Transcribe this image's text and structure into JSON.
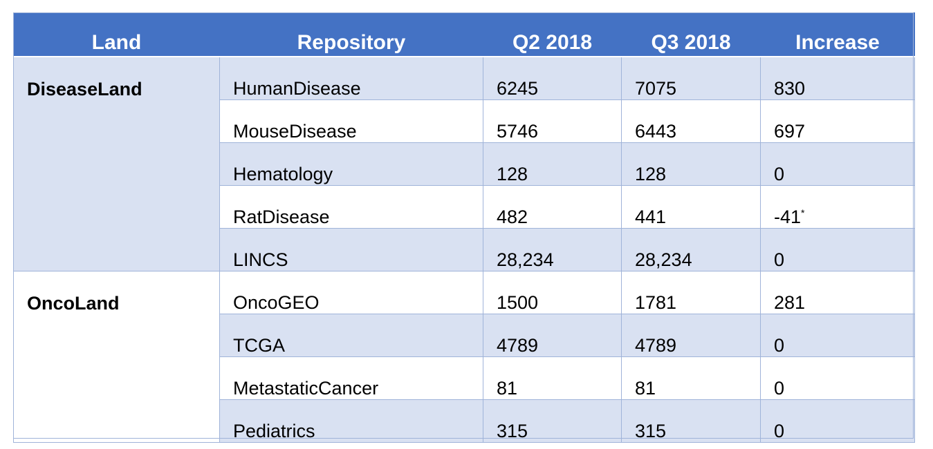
{
  "table": {
    "headers": [
      "Land",
      "Repository",
      "Q2 2018",
      "Q3 2018",
      "Increase"
    ],
    "groups": [
      {
        "land": "DiseaseLand",
        "rows": [
          {
            "repository": "HumanDisease",
            "q2": "6245",
            "q3": "7075",
            "increase": "830",
            "note": ""
          },
          {
            "repository": "MouseDisease",
            "q2": "5746",
            "q3": "6443",
            "increase": "697",
            "note": ""
          },
          {
            "repository": "Hematology",
            "q2": "128",
            "q3": "128",
            "increase": "0",
            "note": ""
          },
          {
            "repository": "RatDisease",
            "q2": "482",
            "q3": "441",
            "increase": "-41",
            "note": "*"
          },
          {
            "repository": "LINCS",
            "q2": "28,234",
            "q3": "28,234",
            "increase": "0",
            "note": ""
          }
        ]
      },
      {
        "land": "OncoLand",
        "rows": [
          {
            "repository": "OncoGEO",
            "q2": "1500",
            "q3": "1781",
            "increase": "281",
            "note": ""
          },
          {
            "repository": "TCGA",
            "q2": "4789",
            "q3": "4789",
            "increase": "0",
            "note": ""
          },
          {
            "repository": "MetastaticCancer",
            "q2": "81",
            "q3": "81",
            "increase": "0",
            "note": ""
          },
          {
            "repository": "Pediatrics",
            "q2": "315",
            "q3": "315",
            "increase": "0",
            "note": ""
          }
        ]
      }
    ]
  },
  "colors": {
    "header_bg": "#4472c4",
    "header_text": "#ffffff",
    "row_shade": "#d9e1f2",
    "row_plain": "#ffffff",
    "grid_line": "#9fb3d9"
  }
}
